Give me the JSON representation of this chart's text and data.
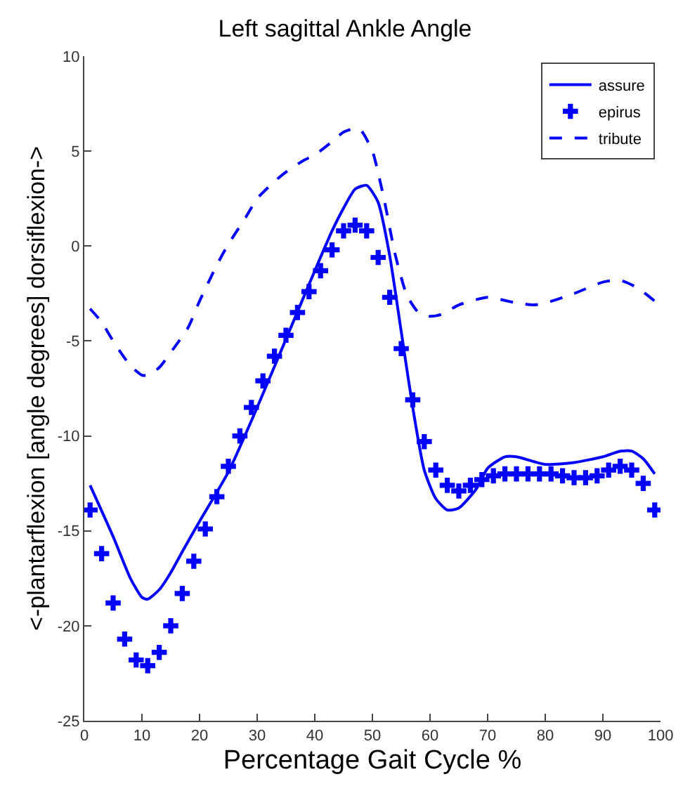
{
  "chart_data": {
    "type": "line",
    "title": "Left sagittal Ankle Angle",
    "xlabel": "Percentage Gait Cycle %",
    "ylabel": "<-plantarflexion [angle degrees] dorsiflexion->",
    "xlim": [
      0,
      100
    ],
    "xticks": [
      0,
      10,
      20,
      30,
      40,
      50,
      60,
      70,
      80,
      90,
      100
    ],
    "ylim": [
      -25,
      10
    ],
    "yticks": [
      -25,
      -20,
      -15,
      -10,
      -5,
      0,
      5,
      10
    ],
    "legend": "top right",
    "series": [
      {
        "name": "assure",
        "color": "#0000ff",
        "line_style": "solid",
        "x": [
          1,
          5,
          8,
          10,
          11,
          13,
          15,
          17,
          20,
          25,
          30,
          35,
          40,
          43,
          45,
          47,
          49,
          51,
          53,
          55,
          57,
          59,
          61,
          63,
          65,
          68,
          70,
          73,
          75,
          80,
          85,
          90,
          93,
          95,
          97,
          99
        ],
        "values": [
          -12.6,
          -15.3,
          -17.5,
          -18.5,
          -18.6,
          -18.1,
          -17.2,
          -16.1,
          -14.5,
          -11.9,
          -8.5,
          -4.9,
          -1.3,
          0.8,
          2.0,
          3.0,
          3.2,
          2.3,
          -0.5,
          -4.5,
          -8.5,
          -11.8,
          -13.3,
          -13.9,
          -13.8,
          -12.8,
          -11.7,
          -11.1,
          -11.1,
          -11.5,
          -11.4,
          -11.1,
          -10.8,
          -10.8,
          -11.2,
          -12.0
        ]
      },
      {
        "name": "epirus",
        "color": "#0000ff",
        "type": "scatter",
        "marker": "cross",
        "x": [
          1,
          3,
          5,
          7,
          9,
          11,
          13,
          15,
          17,
          19,
          21,
          23,
          25,
          27,
          29,
          31,
          33,
          35,
          37,
          39,
          41,
          43,
          45,
          47,
          49,
          51,
          53,
          55,
          57,
          59,
          61,
          63,
          65,
          67,
          69,
          71,
          73,
          75,
          77,
          79,
          81,
          83,
          85,
          87,
          89,
          91,
          93,
          95,
          97,
          99
        ],
        "values": [
          -13.9,
          -16.2,
          -18.8,
          -20.7,
          -21.8,
          -22.1,
          -21.4,
          -20.0,
          -18.3,
          -16.6,
          -14.9,
          -13.2,
          -11.6,
          -10.0,
          -8.5,
          -7.1,
          -5.8,
          -4.7,
          -3.5,
          -2.4,
          -1.3,
          -0.2,
          0.8,
          1.1,
          0.8,
          -0.6,
          -2.7,
          -5.4,
          -8.1,
          -10.3,
          -11.8,
          -12.6,
          -12.9,
          -12.6,
          -12.3,
          -12.1,
          -12.0,
          -12.0,
          -12.0,
          -12.0,
          -12.0,
          -12.1,
          -12.2,
          -12.2,
          -12.1,
          -11.8,
          -11.6,
          -11.8,
          -12.5,
          -13.9
        ]
      },
      {
        "name": "tribute",
        "color": "#0000ff",
        "line_style": "dashed",
        "x": [
          1,
          3,
          5,
          8,
          10,
          11,
          13,
          15,
          18,
          20,
          23,
          25,
          28,
          30,
          33,
          35,
          38,
          40,
          43,
          45,
          47,
          48,
          50,
          52,
          54,
          56,
          58,
          60,
          62,
          65,
          70,
          75,
          78,
          80,
          85,
          90,
          93,
          96,
          99
        ],
        "values": [
          -3.3,
          -4.0,
          -5.0,
          -6.3,
          -6.8,
          -6.8,
          -6.4,
          -5.6,
          -4.3,
          -2.9,
          -1.0,
          0.1,
          1.5,
          2.5,
          3.4,
          3.9,
          4.5,
          4.8,
          5.5,
          6.0,
          6.2,
          6.1,
          5.0,
          2.5,
          -0.5,
          -2.6,
          -3.5,
          -3.7,
          -3.6,
          -3.1,
          -2.7,
          -3.0,
          -3.1,
          -3.0,
          -2.5,
          -1.9,
          -1.8,
          -2.2,
          -2.9
        ]
      }
    ]
  }
}
